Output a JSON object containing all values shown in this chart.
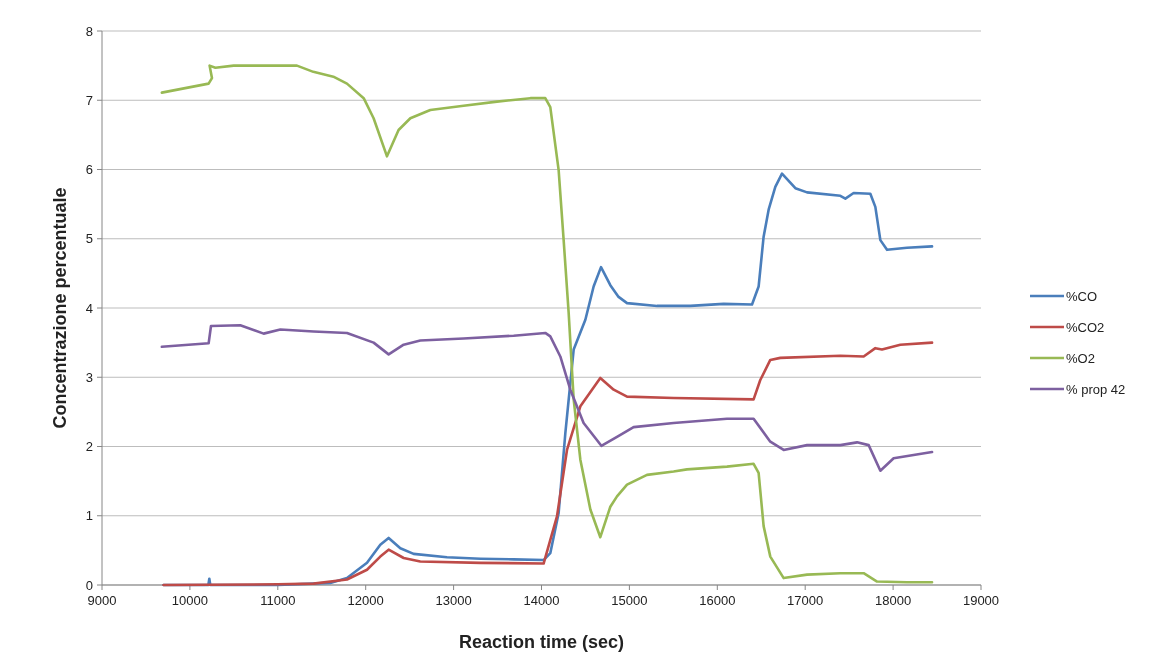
{
  "chart_data": {
    "type": "line",
    "xlabel": "Reaction time (sec)",
    "ylabel": "Concentrazione percentuale",
    "xlim": [
      9000,
      19000
    ],
    "xticks": [
      9000,
      10000,
      11000,
      12000,
      13000,
      14000,
      15000,
      16000,
      17000,
      18000,
      19000
    ],
    "ylim": [
      0,
      8
    ],
    "yticks": [
      0,
      1,
      2,
      3,
      4,
      5,
      6,
      7,
      8
    ],
    "grid": "y",
    "legend": "right",
    "marker": "none",
    "line_style": "solid",
    "series": [
      {
        "name": "%CO",
        "color": "#4a7ebb",
        "x": [
          9700,
          10210,
          10221,
          10232,
          11000,
          11597,
          11787,
          12015,
          12166,
          12261,
          12394,
          12545,
          12925,
          13304,
          13683,
          14024,
          14100,
          14195,
          14271,
          14366,
          14499,
          14593,
          14677,
          14783,
          14877,
          14973,
          15314,
          15693,
          16072,
          16395,
          16470,
          16527,
          16584,
          16660,
          16736,
          16888,
          17021,
          17400,
          17457,
          17551,
          17741,
          17798,
          17855,
          17931,
          18158,
          18443
        ],
        "values": [
          0,
          0,
          0.09,
          0,
          0,
          0.03,
          0.1,
          0.32,
          0.58,
          0.68,
          0.53,
          0.45,
          0.4,
          0.38,
          0.37,
          0.36,
          0.46,
          1.04,
          2.19,
          3.4,
          3.83,
          4.31,
          4.59,
          4.33,
          4.16,
          4.07,
          4.03,
          4.03,
          4.06,
          4.05,
          4.31,
          5.03,
          5.42,
          5.75,
          5.94,
          5.73,
          5.67,
          5.62,
          5.58,
          5.66,
          5.65,
          5.46,
          4.98,
          4.84,
          4.87,
          4.89
        ]
      },
      {
        "name": "%CO2",
        "color": "#be4b48",
        "x": [
          9700,
          11000,
          11407,
          11787,
          12015,
          12166,
          12261,
          12432,
          12621,
          13304,
          14024,
          14176,
          14290,
          14442,
          14669,
          14821,
          14973,
          15503,
          16413,
          16489,
          16603,
          16717,
          17400,
          17665,
          17798,
          17874,
          18082,
          18443
        ],
        "values": [
          0,
          0.01,
          0.02,
          0.08,
          0.22,
          0.41,
          0.51,
          0.39,
          0.34,
          0.32,
          0.31,
          0.99,
          1.95,
          2.58,
          2.99,
          2.82,
          2.72,
          2.7,
          2.68,
          2.96,
          3.25,
          3.28,
          3.31,
          3.3,
          3.42,
          3.4,
          3.47,
          3.5
        ]
      },
      {
        "name": "%O2",
        "color": "#98b954",
        "x": [
          9681,
          10213,
          10251,
          10224,
          10290,
          10498,
          11218,
          11404,
          11632,
          11787,
          11977,
          12090,
          12242,
          12374,
          12508,
          12735,
          13114,
          13494,
          13873,
          14043,
          14100,
          14195,
          14252,
          14309,
          14366,
          14442,
          14556,
          14669,
          14783,
          14859,
          14973,
          15200,
          15503,
          15655,
          16110,
          16413,
          16470,
          16527,
          16603,
          16755,
          17021,
          17400,
          17665,
          17817,
          18158,
          18443
        ],
        "values": [
          7.11,
          7.24,
          7.32,
          7.5,
          7.47,
          7.5,
          7.5,
          7.41,
          7.34,
          7.24,
          7.03,
          6.74,
          6.19,
          6.57,
          6.74,
          6.86,
          6.92,
          6.98,
          7.03,
          7.03,
          6.9,
          5.99,
          4.98,
          3.93,
          2.68,
          1.81,
          1.09,
          0.69,
          1.13,
          1.28,
          1.45,
          1.59,
          1.64,
          1.67,
          1.71,
          1.75,
          1.62,
          0.85,
          0.41,
          0.1,
          0.15,
          0.17,
          0.17,
          0.05,
          0.04,
          0.04
        ]
      },
      {
        "name": "% prop 42",
        "color": "#7d60a0",
        "x": [
          9681,
          10213,
          10240,
          10573,
          10839,
          11029,
          11407,
          11787,
          12090,
          12261,
          12432,
          12621,
          13114,
          13683,
          14043,
          14100,
          14214,
          14328,
          14479,
          14681,
          14859,
          15048,
          15503,
          16110,
          16413,
          16603,
          16755,
          17021,
          17400,
          17590,
          17722,
          17855,
          18006,
          18443
        ],
        "values": [
          3.44,
          3.49,
          3.74,
          3.75,
          3.63,
          3.69,
          3.66,
          3.64,
          3.5,
          3.33,
          3.47,
          3.53,
          3.56,
          3.6,
          3.64,
          3.59,
          3.3,
          2.82,
          2.34,
          2.01,
          2.14,
          2.28,
          2.34,
          2.4,
          2.4,
          2.07,
          1.95,
          2.02,
          2.02,
          2.06,
          2.02,
          1.65,
          1.83,
          1.92
        ]
      }
    ]
  }
}
